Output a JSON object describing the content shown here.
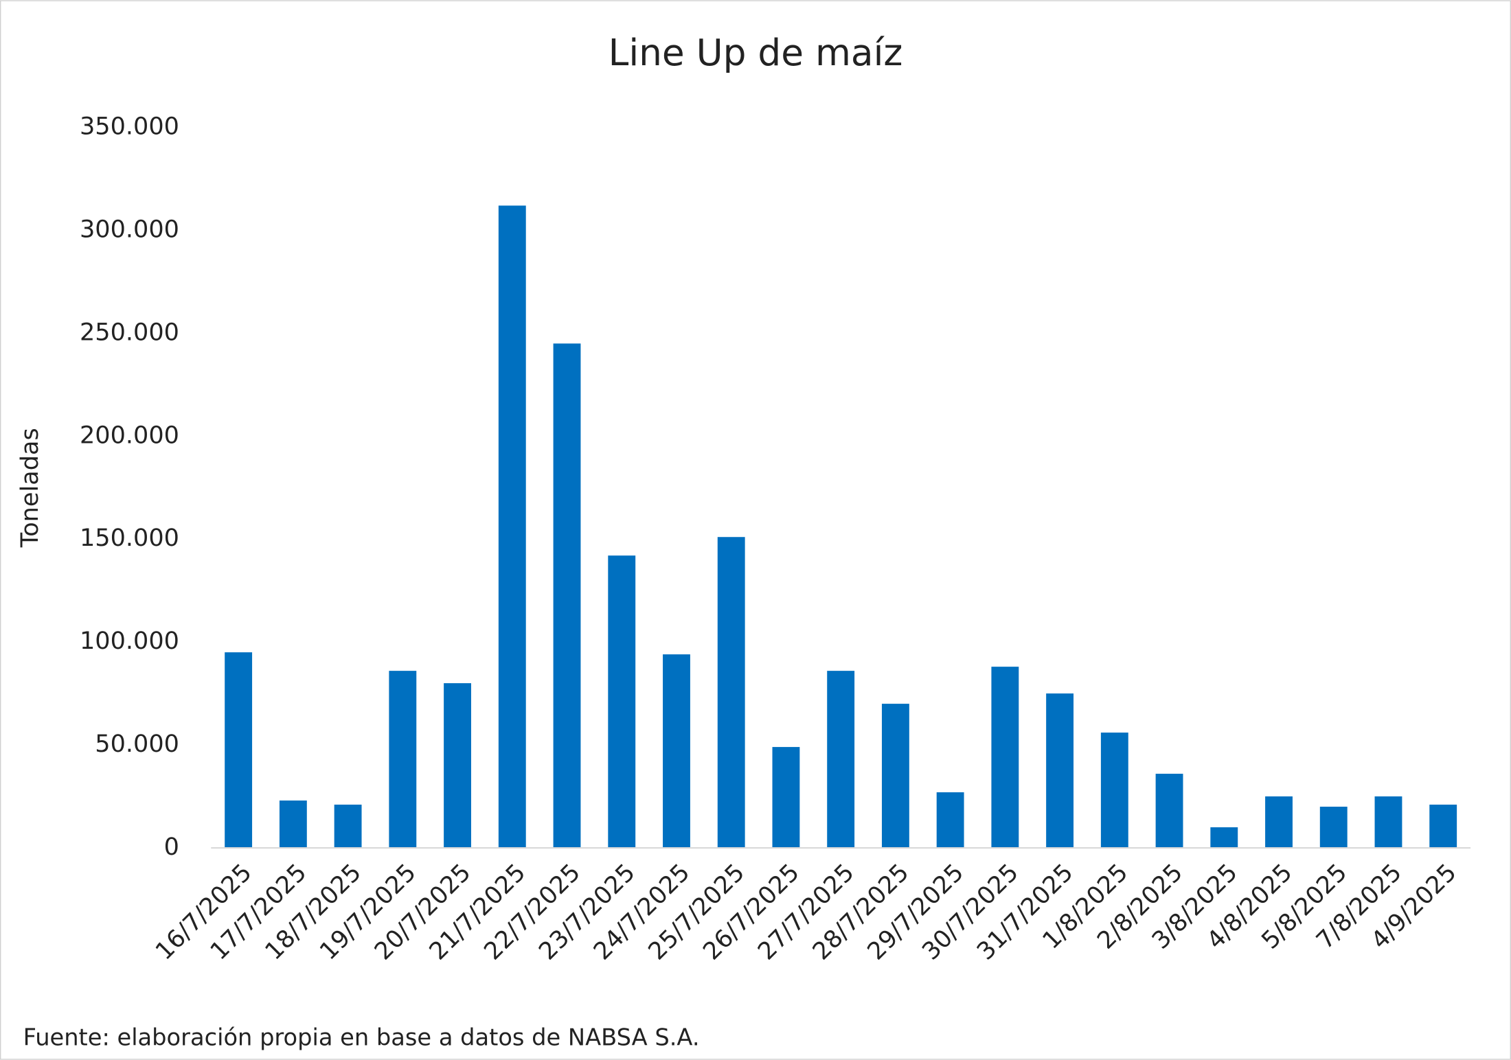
{
  "chart_data": {
    "type": "bar",
    "title": "Line Up de maíz",
    "y_label": "Toneladas",
    "source": "Fuente: elaboración propia en base a datos de NABSA S.A.",
    "categories": [
      "16/7/2025",
      "17/7/2025",
      "18/7/2025",
      "19/7/2025",
      "20/7/2025",
      "21/7/2025",
      "22/7/2025",
      "23/7/2025",
      "24/7/2025",
      "25/7/2025",
      "26/7/2025",
      "27/7/2025",
      "28/7/2025",
      "29/7/2025",
      "30/7/2025",
      "31/7/2025",
      "1/8/2025",
      "2/8/2025",
      "3/8/2025",
      "4/8/2025",
      "5/8/2025",
      "7/8/2025",
      "4/9/2025"
    ],
    "values": [
      95000,
      23000,
      21000,
      86000,
      80000,
      312000,
      245000,
      142000,
      94000,
      151000,
      49000,
      86000,
      70000,
      27000,
      88000,
      75000,
      56000,
      36000,
      10000,
      25000,
      20000,
      25000,
      21000
    ],
    "color": "#0070c0",
    "ylim": [
      0,
      350000
    ],
    "yticks": [
      0,
      {
        "value": 50000,
        "label": "50.000"
      },
      {
        "value": 100000,
        "label": "100.000"
      },
      {
        "value": 150000,
        "label": "150.000"
      },
      {
        "value": 200000,
        "label": "200.000"
      },
      {
        "value": 250000,
        "label": "250.000"
      },
      {
        "value": 300000,
        "label": "300.000"
      },
      {
        "value": 350000,
        "label": "350.000"
      }
    ],
    "grid": false
  }
}
